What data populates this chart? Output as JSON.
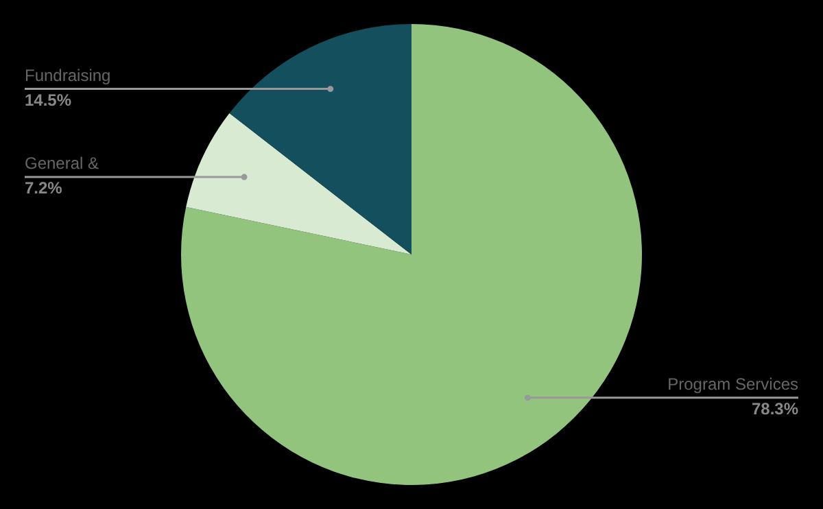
{
  "chart_data": {
    "type": "pie",
    "categories": [
      "Program Services",
      "General &",
      "Fundraising"
    ],
    "values": [
      78.3,
      7.2,
      14.5
    ],
    "colors": [
      "#93c47d",
      "#d9ead3",
      "#134f5c"
    ],
    "value_labels": [
      "78.3%",
      "7.2%",
      "14.5%"
    ],
    "legend": false
  }
}
